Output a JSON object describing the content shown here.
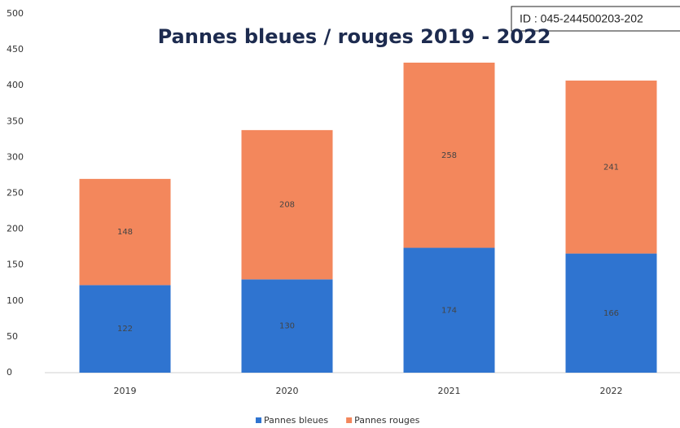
{
  "chart_data": {
    "type": "stacked_bar",
    "title": "Pannes bleues / rouges 2019 - 2022",
    "annotation": "ID : 045-244500203-202",
    "categories": [
      "2019",
      "2020",
      "2021",
      "2022"
    ],
    "series": [
      {
        "name": "Pannes bleues",
        "color": "#2f74d0",
        "values": [
          122,
          130,
          174,
          166
        ]
      },
      {
        "name": "Pannes rouges",
        "color": "#f3875c",
        "values": [
          148,
          208,
          258,
          241
        ]
      }
    ],
    "ylim": [
      0,
      500
    ],
    "yticks": [
      0,
      50,
      100,
      150,
      200,
      250,
      300,
      350,
      400,
      450,
      500
    ],
    "legend": "bottom"
  }
}
